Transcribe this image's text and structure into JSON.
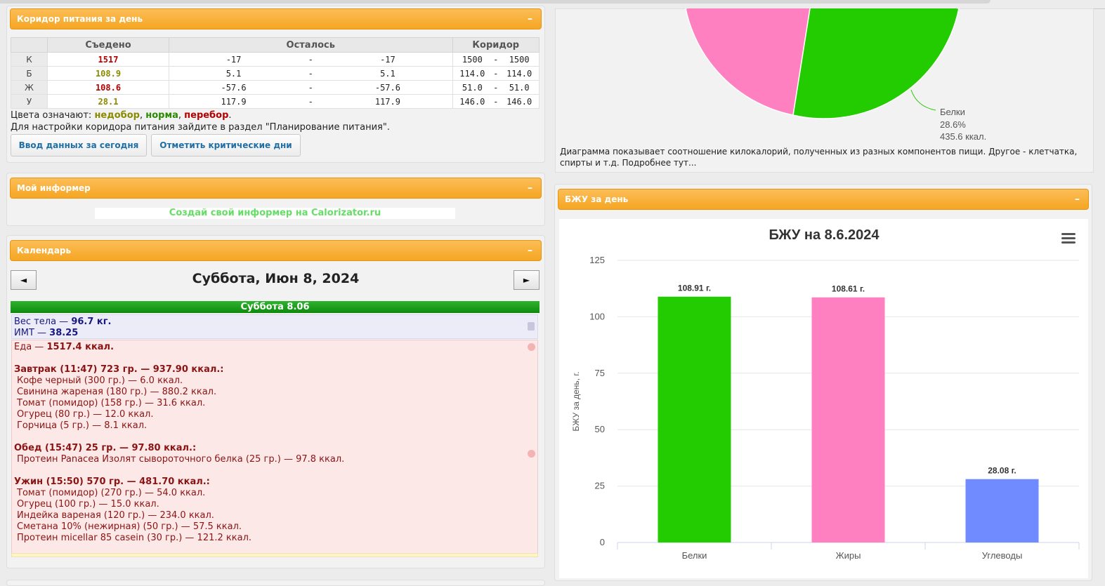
{
  "corridor": {
    "title": "Коридор питания за день",
    "minimize": "–",
    "headers": [
      "Съедено",
      "Осталось",
      "Коридор"
    ],
    "rows": [
      {
        "label": "К",
        "eaten": "1517",
        "left_min": "-17",
        "left_max": "-17",
        "cor_min": "1500",
        "cor_max": "1500"
      },
      {
        "label": "Б",
        "eaten": "108.9",
        "left_min": "5.1",
        "left_max": "5.1",
        "cor_min": "114.0",
        "cor_max": "114.0"
      },
      {
        "label": "Ж",
        "eaten": "108.6",
        "left_min": "-57.6",
        "left_max": "-57.6",
        "cor_min": "51.0",
        "cor_max": "51.0"
      },
      {
        "label": "У",
        "eaten": "28.1",
        "left_min": "117.9",
        "left_max": "117.9",
        "cor_min": "146.0",
        "cor_max": "146.0"
      }
    ],
    "dash": "-",
    "legend_prefix": "Цвета означают: ",
    "legend_under": "недобор",
    "legend_norm": "норма",
    "legend_over": "перебор",
    "sep": ", ",
    "dot": ".",
    "hint": "Для настройки коридора питания зайдите в раздел \"Планирование питания\".",
    "btn_input": "Ввод данных за сегодня",
    "btn_critical": "Отметить критические дни"
  },
  "informer": {
    "title": "Мой информер",
    "minimize": "–",
    "text": "Создай свой информер на Calorizator.ru"
  },
  "calendar": {
    "title": "Календарь",
    "minimize": "–",
    "prev": "◄",
    "next": "►",
    "date": "Суббота, Июн 8, 2024",
    "day_header": "Суббота 8.06",
    "weight_label": "Вес тела — ",
    "weight_value": "96.7 кг.",
    "bmi_label": "ИМТ — ",
    "bmi_value": "38.25",
    "food_label": "Еда — ",
    "food_value": "1517.4 ккал.",
    "breakfast": "Завтрак (11:47) 723 гр. — 937.90 ккал.:",
    "breakfast_items": [
      "Кофе черный (300 гр.) — 6.0 ккал.",
      "Свинина жареная (180 гр.) — 880.2 ккал.",
      "Томат (помидор) (158 гр.) — 31.6 ккал.",
      "Огурец (80 гр.) — 12.0 ккал.",
      "Горчица (5 гр.) — 8.1 ккал."
    ],
    "lunch": "Обед (15:47) 25 гр. — 97.80 ккал.:",
    "lunch_items": [
      "Протеин Panacea Изолят сывороточного белка (25 гр.) — 97.8 ккал."
    ],
    "dinner": "Ужин (15:50) 570 гр. — 481.70 ккал.:",
    "dinner_items": [
      "Томат (помидор) (270 гр.) — 54.0 ккал.",
      "Огурец (100 гр.) — 15.0 ккал.",
      "Индейка вареная (120 гр.) — 234.0 ккал.",
      "Сметана 10% (нежирная) (50 гр.) — 57.5 ккал.",
      "Протеин micellar 85 casein (30 гр.) — 121.2 ккал."
    ]
  },
  "pie": {
    "label_name": "Белки",
    "label_pct": "28.6%",
    "label_kcal": "435.6 ккал.",
    "caption": "Диаграмма показывает соотношение килокалорий, полученных из разных компонентов пищи. Другое - клетчатка, спирты и т.д. Подробнее тут...",
    "colors": {
      "protein": "#22cc00",
      "fat": "#ff80c0"
    }
  },
  "bju": {
    "title": "БЖУ за день",
    "minimize": "–",
    "menu_icon": "hamburger-menu-icon"
  },
  "chart_data": {
    "type": "bar",
    "title": "БЖУ на 8.6.2024",
    "ylabel": "БЖУ за день, г.",
    "categories": [
      "Белки",
      "Жиры",
      "Углеводы"
    ],
    "values": [
      108.91,
      108.61,
      28.08
    ],
    "value_labels": [
      "108.91 г.",
      "108.61 г.",
      "28.08 г."
    ],
    "colors": [
      "#22cc00",
      "#ff80c0",
      "#6f8bff"
    ],
    "ylim": [
      0,
      125
    ],
    "yticks": [
      0,
      25,
      50,
      75,
      100,
      125
    ],
    "grid": true
  }
}
